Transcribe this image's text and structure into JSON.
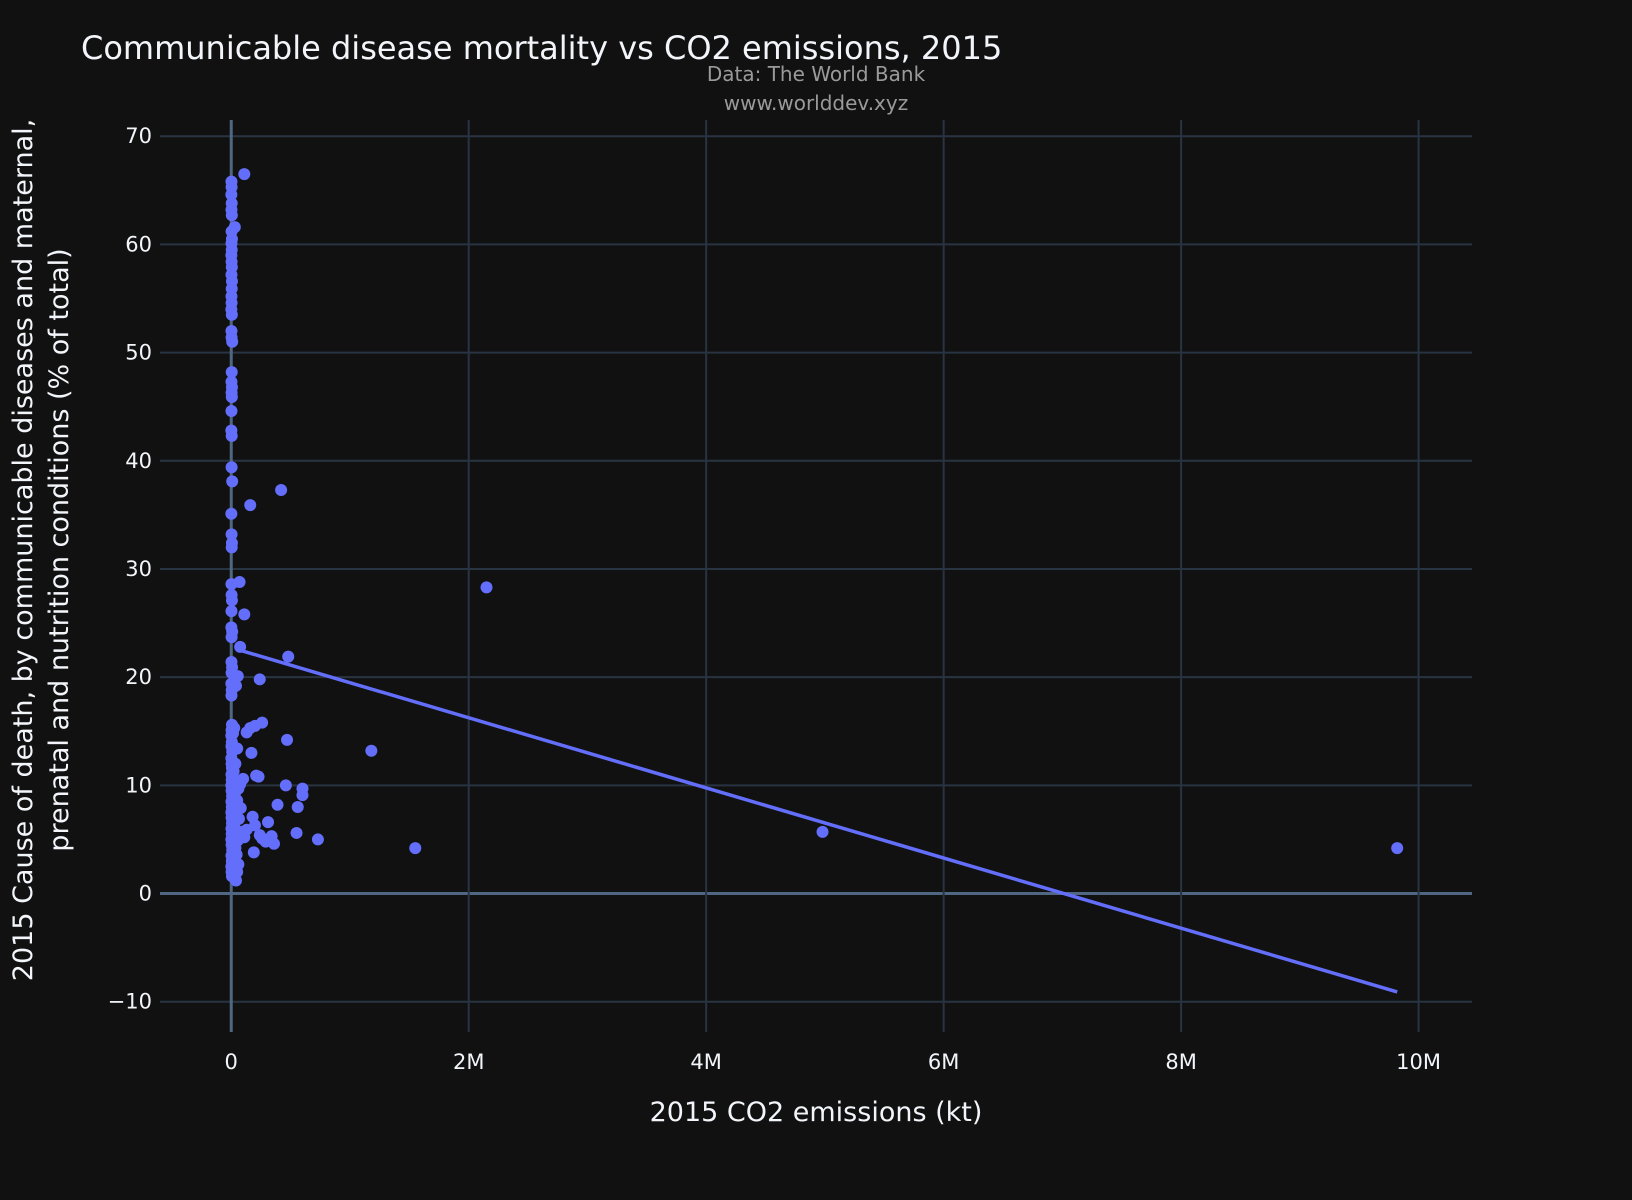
{
  "chart_data": {
    "type": "scatter",
    "title": "Communicable disease mortality vs CO2 emissions, 2015",
    "subtitle_lines": [
      "Data: The World Bank",
      "www.worlddev.xyz"
    ],
    "xlabel": "2015 CO2 emissions (kt)",
    "ylabel_lines": [
      "2015 Cause of death, by communicable diseases and maternal,",
      "prenatal and nutrition conditions (% of total)"
    ],
    "xlim": [
      -600000,
      10450000
    ],
    "ylim": [
      -12.8,
      71.5
    ],
    "x_ticks": [
      0,
      2000000,
      4000000,
      6000000,
      8000000,
      10000000
    ],
    "x_tick_labels": [
      "0",
      "2M",
      "4M",
      "6M",
      "8M",
      "10M"
    ],
    "y_ticks": [
      -10,
      0,
      10,
      20,
      30,
      40,
      50,
      60,
      70
    ],
    "y_tick_labels": [
      "−10",
      "0",
      "10",
      "20",
      "30",
      "40",
      "50",
      "60",
      "70"
    ],
    "grid": true,
    "colors": {
      "background": "#111111",
      "marker": "#636efa",
      "trendline": "#636efa",
      "grid": "#283442",
      "zeroline": "#506784"
    },
    "points": [
      [
        2000,
        65.8
      ],
      [
        3000,
        65.3
      ],
      [
        1000,
        64.6
      ],
      [
        4000,
        63.8
      ],
      [
        2000,
        63.2
      ],
      [
        5000,
        62.7
      ],
      [
        30000,
        61.6
      ],
      [
        3000,
        61.2
      ],
      [
        6000,
        60.5
      ],
      [
        2000,
        60.1
      ],
      [
        4000,
        59.5
      ],
      [
        1000,
        59.0
      ],
      [
        3000,
        58.4
      ],
      [
        5000,
        57.9
      ],
      [
        2000,
        57.2
      ],
      [
        6000,
        56.6
      ],
      [
        4000,
        55.9
      ],
      [
        2000,
        55.2
      ],
      [
        3000,
        54.6
      ],
      [
        1000,
        54.0
      ],
      [
        5000,
        53.5
      ],
      [
        2000,
        52.0
      ],
      [
        3000,
        51.4
      ],
      [
        8000,
        51.0
      ],
      [
        4000,
        48.2
      ],
      [
        2000,
        47.3
      ],
      [
        6000,
        46.8
      ],
      [
        3000,
        46.3
      ],
      [
        5000,
        45.9
      ],
      [
        2000,
        44.6
      ],
      [
        1000,
        42.8
      ],
      [
        4000,
        42.3
      ],
      [
        3000,
        39.4
      ],
      [
        8000,
        38.1
      ],
      [
        1000,
        35.1
      ],
      [
        3000,
        33.2
      ],
      [
        6000,
        32.4
      ],
      [
        4000,
        32.0
      ],
      [
        2000,
        28.6
      ],
      [
        3000,
        27.6
      ],
      [
        6000,
        27.1
      ],
      [
        2000,
        26.1
      ],
      [
        1000,
        24.6
      ],
      [
        8000,
        24.2
      ],
      [
        3000,
        23.7
      ],
      [
        2000,
        21.4
      ],
      [
        7000,
        20.9
      ],
      [
        3000,
        20.4
      ],
      [
        1000,
        19.4
      ],
      [
        4000,
        18.8
      ],
      [
        2000,
        18.3
      ],
      [
        6000,
        15.6
      ],
      [
        3000,
        15.1
      ],
      [
        1000,
        14.6
      ],
      [
        5000,
        14.0
      ],
      [
        2000,
        13.6
      ],
      [
        8000,
        13.1
      ],
      [
        1000,
        12.5
      ],
      [
        3000,
        12.0
      ],
      [
        6000,
        11.6
      ],
      [
        2000,
        11.0
      ],
      [
        4000,
        10.5
      ],
      [
        1000,
        10.0
      ],
      [
        3000,
        9.5
      ],
      [
        7000,
        9.0
      ],
      [
        2000,
        8.5
      ],
      [
        5000,
        8.0
      ],
      [
        1000,
        7.5
      ],
      [
        3000,
        7.0
      ],
      [
        6000,
        6.5
      ],
      [
        2000,
        6.0
      ],
      [
        4000,
        5.5
      ],
      [
        1000,
        5.0
      ],
      [
        3000,
        4.5
      ],
      [
        8000,
        4.0
      ],
      [
        2000,
        3.5
      ],
      [
        5000,
        3.0
      ],
      [
        1000,
        2.5
      ],
      [
        3000,
        2.0
      ],
      [
        6000,
        1.6
      ],
      [
        12000,
        1.9
      ],
      [
        20000,
        2.3
      ],
      [
        30000,
        1.5
      ],
      [
        40000,
        1.2
      ],
      [
        50000,
        2.0
      ],
      [
        60000,
        2.7
      ],
      [
        45000,
        3.6
      ],
      [
        35000,
        4.2
      ],
      [
        55000,
        4.9
      ],
      [
        70000,
        5.3
      ],
      [
        90000,
        5.7
      ],
      [
        110000,
        5.2
      ],
      [
        25000,
        6.3
      ],
      [
        65000,
        6.9
      ],
      [
        40000,
        7.5
      ],
      [
        80000,
        7.9
      ],
      [
        50000,
        8.6
      ],
      [
        30000,
        9.2
      ],
      [
        60000,
        9.7
      ],
      [
        45000,
        10.4
      ],
      [
        75000,
        10.1
      ],
      [
        100000,
        10.6
      ],
      [
        20000,
        11.3
      ],
      [
        35000,
        12.0
      ],
      [
        50000,
        13.4
      ],
      [
        15000,
        14.8
      ],
      [
        25000,
        15.3
      ],
      [
        40000,
        19.2
      ],
      [
        55000,
        20.1
      ],
      [
        75000,
        22.8
      ],
      [
        70000,
        28.8
      ],
      [
        110000,
        25.8
      ],
      [
        110000,
        66.5
      ],
      [
        160000,
        35.9
      ],
      [
        420000,
        37.3
      ],
      [
        480000,
        21.9
      ],
      [
        240000,
        19.8
      ],
      [
        130000,
        14.9
      ],
      [
        160000,
        15.3
      ],
      [
        200000,
        15.5
      ],
      [
        260000,
        15.8
      ],
      [
        170000,
        13.0
      ],
      [
        470000,
        14.2
      ],
      [
        210000,
        10.9
      ],
      [
        230000,
        10.8
      ],
      [
        460000,
        10.0
      ],
      [
        600000,
        9.7
      ],
      [
        600000,
        9.1
      ],
      [
        560000,
        8.0
      ],
      [
        390000,
        8.2
      ],
      [
        180000,
        7.1
      ],
      [
        310000,
        6.6
      ],
      [
        200000,
        6.3
      ],
      [
        130000,
        5.9
      ],
      [
        240000,
        5.4
      ],
      [
        260000,
        5.1
      ],
      [
        340000,
        5.3
      ],
      [
        290000,
        4.8
      ],
      [
        360000,
        4.6
      ],
      [
        550000,
        5.6
      ],
      [
        730000,
        5.0
      ],
      [
        190000,
        3.8
      ],
      [
        1550000,
        4.2
      ],
      [
        1180000,
        13.2
      ],
      [
        2150000,
        28.3
      ],
      [
        4980000,
        5.7
      ],
      [
        9820000,
        4.2
      ]
    ],
    "trendline": {
      "x": [
        40000,
        9820000
      ],
      "y": [
        22.6,
        -9.1
      ]
    }
  }
}
